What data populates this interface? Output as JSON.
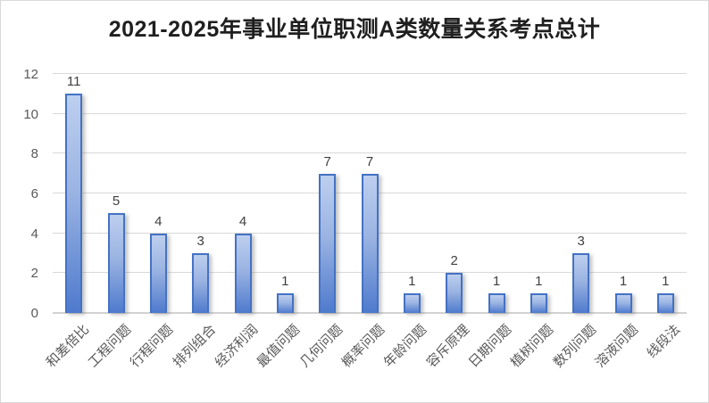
{
  "chart_data": {
    "type": "bar",
    "title": "2021-2025年事业单位职测A类数量关系考点总计",
    "categories": [
      "和差倍比",
      "工程问题",
      "行程问题",
      "排列组合",
      "经济利润",
      "最值问题",
      "几何问题",
      "概率问题",
      "年龄问题",
      "容斥原理",
      "日期问题",
      "植树问题",
      "数列问题",
      "溶液问题",
      "线段法"
    ],
    "values": [
      11,
      5,
      4,
      3,
      4,
      1,
      7,
      7,
      1,
      2,
      1,
      1,
      3,
      1,
      1
    ],
    "xlabel": "",
    "ylabel": "",
    "ylim": [
      0,
      12
    ],
    "yticks": [
      0,
      2,
      4,
      6,
      8,
      10,
      12
    ],
    "grid": true,
    "legend": false,
    "data_labels": true,
    "x_label_rotation_deg": -45
  },
  "colors": {
    "bar_border": "#4472c4",
    "bar_fill_top": "#bdcfef",
    "bar_fill_bottom": "#4e7acd",
    "gridline": "#d9d9d9",
    "axis_line": "#d2d2d2",
    "axis_text": "#595959",
    "data_label_text": "#404040",
    "title_text": "#1f1f1f",
    "chart_border": "#d9d9d9",
    "background": "#ffffff"
  }
}
